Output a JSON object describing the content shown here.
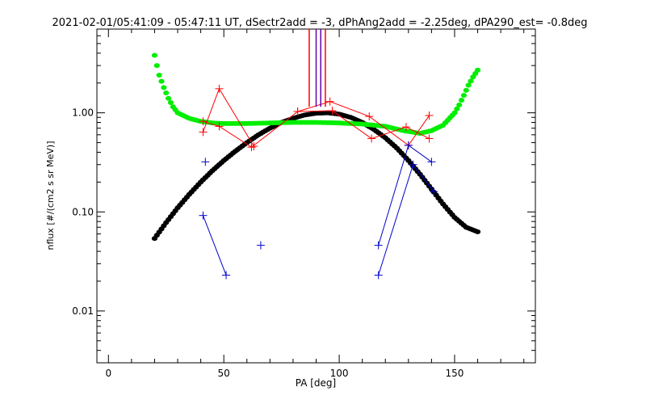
{
  "chart_data": {
    "type": "scatter",
    "title": "2021-02-01/05:41:09 - 05:47:11 UT, dSectr2add = -3, dPhAng2add = -2.25deg, dPA290_est=  -0.8deg",
    "xlabel": "PA [deg]",
    "ylabel": "nflux [#/(cm2 s sr MeV)]",
    "xlim": [
      -5,
      185
    ],
    "ylim": [
      0.003,
      7
    ],
    "y_scale": "log",
    "grid": false,
    "x_ticks": [
      0,
      50,
      100,
      150
    ],
    "x_tick_labels": [
      "0",
      "50",
      "100",
      "150"
    ],
    "y_ticks": [
      0.01,
      0.1,
      1.0
    ],
    "y_tick_labels": [
      "0.01",
      "0.10",
      "1.00"
    ],
    "colors": {
      "red": "#ff0000",
      "blue": "#0000cc",
      "green": "#00ee00",
      "black": "#000000",
      "purple": "#6600aa"
    },
    "series": [
      {
        "color": "black",
        "style": "dotted-curve",
        "x": [
          20,
          25,
          30,
          35,
          40,
          45,
          50,
          55,
          60,
          65,
          70,
          75,
          80,
          85,
          90,
          95,
          100,
          105,
          110,
          115,
          120,
          125,
          130,
          135,
          140,
          145,
          150,
          155,
          160
        ],
        "y": [
          0.054,
          0.078,
          0.11,
          0.15,
          0.2,
          0.26,
          0.33,
          0.41,
          0.5,
          0.6,
          0.7,
          0.8,
          0.88,
          0.95,
          0.99,
          1.0,
          0.97,
          0.9,
          0.8,
          0.68,
          0.56,
          0.44,
          0.33,
          0.24,
          0.17,
          0.12,
          0.088,
          0.07,
          0.063
        ]
      },
      {
        "color": "green",
        "style": "dotted-curve",
        "x": [
          20,
          21,
          22,
          24,
          26,
          28,
          30,
          35,
          40,
          45,
          50,
          60,
          70,
          80,
          90,
          100,
          110,
          120,
          128,
          135,
          140,
          145,
          150,
          152,
          154,
          156,
          158,
          160
        ],
        "y": [
          3.8,
          3.0,
          2.4,
          1.8,
          1.4,
          1.15,
          1.0,
          0.88,
          0.82,
          0.79,
          0.78,
          0.78,
          0.79,
          0.8,
          0.8,
          0.79,
          0.77,
          0.73,
          0.66,
          0.62,
          0.66,
          0.75,
          1.0,
          1.2,
          1.5,
          1.9,
          2.3,
          2.7
        ]
      },
      {
        "color": "red",
        "style": "lines-plus",
        "segments": [
          {
            "x": [
              41,
              48,
              63
            ],
            "y": [
              0.64,
              1.75,
              0.46
            ]
          },
          {
            "x": [
              41,
              48,
              62,
              82,
              96,
              113,
              130,
              139
            ],
            "y": [
              0.82,
              0.73,
              0.45,
              1.03,
              1.3,
              0.92,
              0.47,
              0.94
            ]
          },
          {
            "x": [
              82,
              97,
              114,
              129,
              139
            ],
            "y": [
              1.03,
              1.05,
              0.55,
              0.72,
              0.55
            ]
          }
        ]
      },
      {
        "color": "blue",
        "style": "lines-plus",
        "segments": [
          {
            "x": [
              41,
              51
            ],
            "y": [
              0.092,
              0.023
            ]
          },
          {
            "x": [
              117,
              130,
              140
            ],
            "y": [
              0.046,
              0.47,
              0.32
            ]
          },
          {
            "x": [
              117,
              132,
              141
            ],
            "y": [
              0.023,
              0.3,
              0.16
            ]
          }
        ],
        "points": [
          {
            "x": 42,
            "y": 0.32
          },
          {
            "x": 66,
            "y": 0.046
          }
        ]
      },
      {
        "color": "red",
        "style": "vertical-lines",
        "x": [
          87,
          94
        ]
      },
      {
        "color": "purple",
        "style": "vertical-lines",
        "x": [
          90,
          92
        ]
      }
    ]
  }
}
